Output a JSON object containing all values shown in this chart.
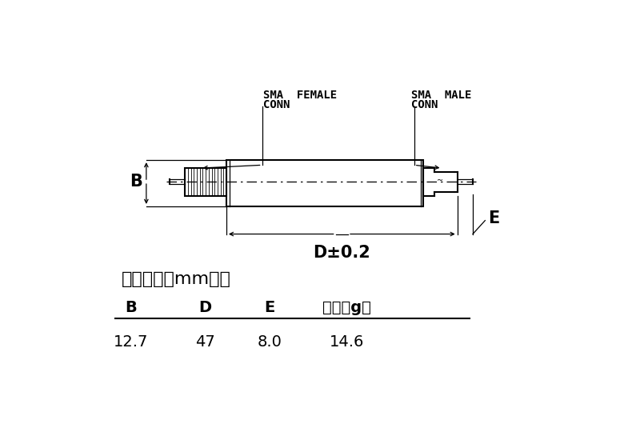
{
  "bg_color": "#ffffff",
  "line_color": "#000000",
  "chinese_label": "外观尺寸（mm）：",
  "table_headers": [
    "B",
    "D",
    "E",
    "重量（g）"
  ],
  "table_values": [
    "12.7",
    "47",
    "8.0",
    "14.6"
  ],
  "dim_label_B": "B",
  "dim_label_D": "D±0.2",
  "dim_label_E": "E",
  "sma_female_line1": "SMA  FEMALE",
  "sma_female_line2": "CONN",
  "sma_male_line1": "SMA  MALE",
  "sma_male_line2": "CONN",
  "figsize": [
    8.0,
    5.45
  ],
  "dpi": 100
}
